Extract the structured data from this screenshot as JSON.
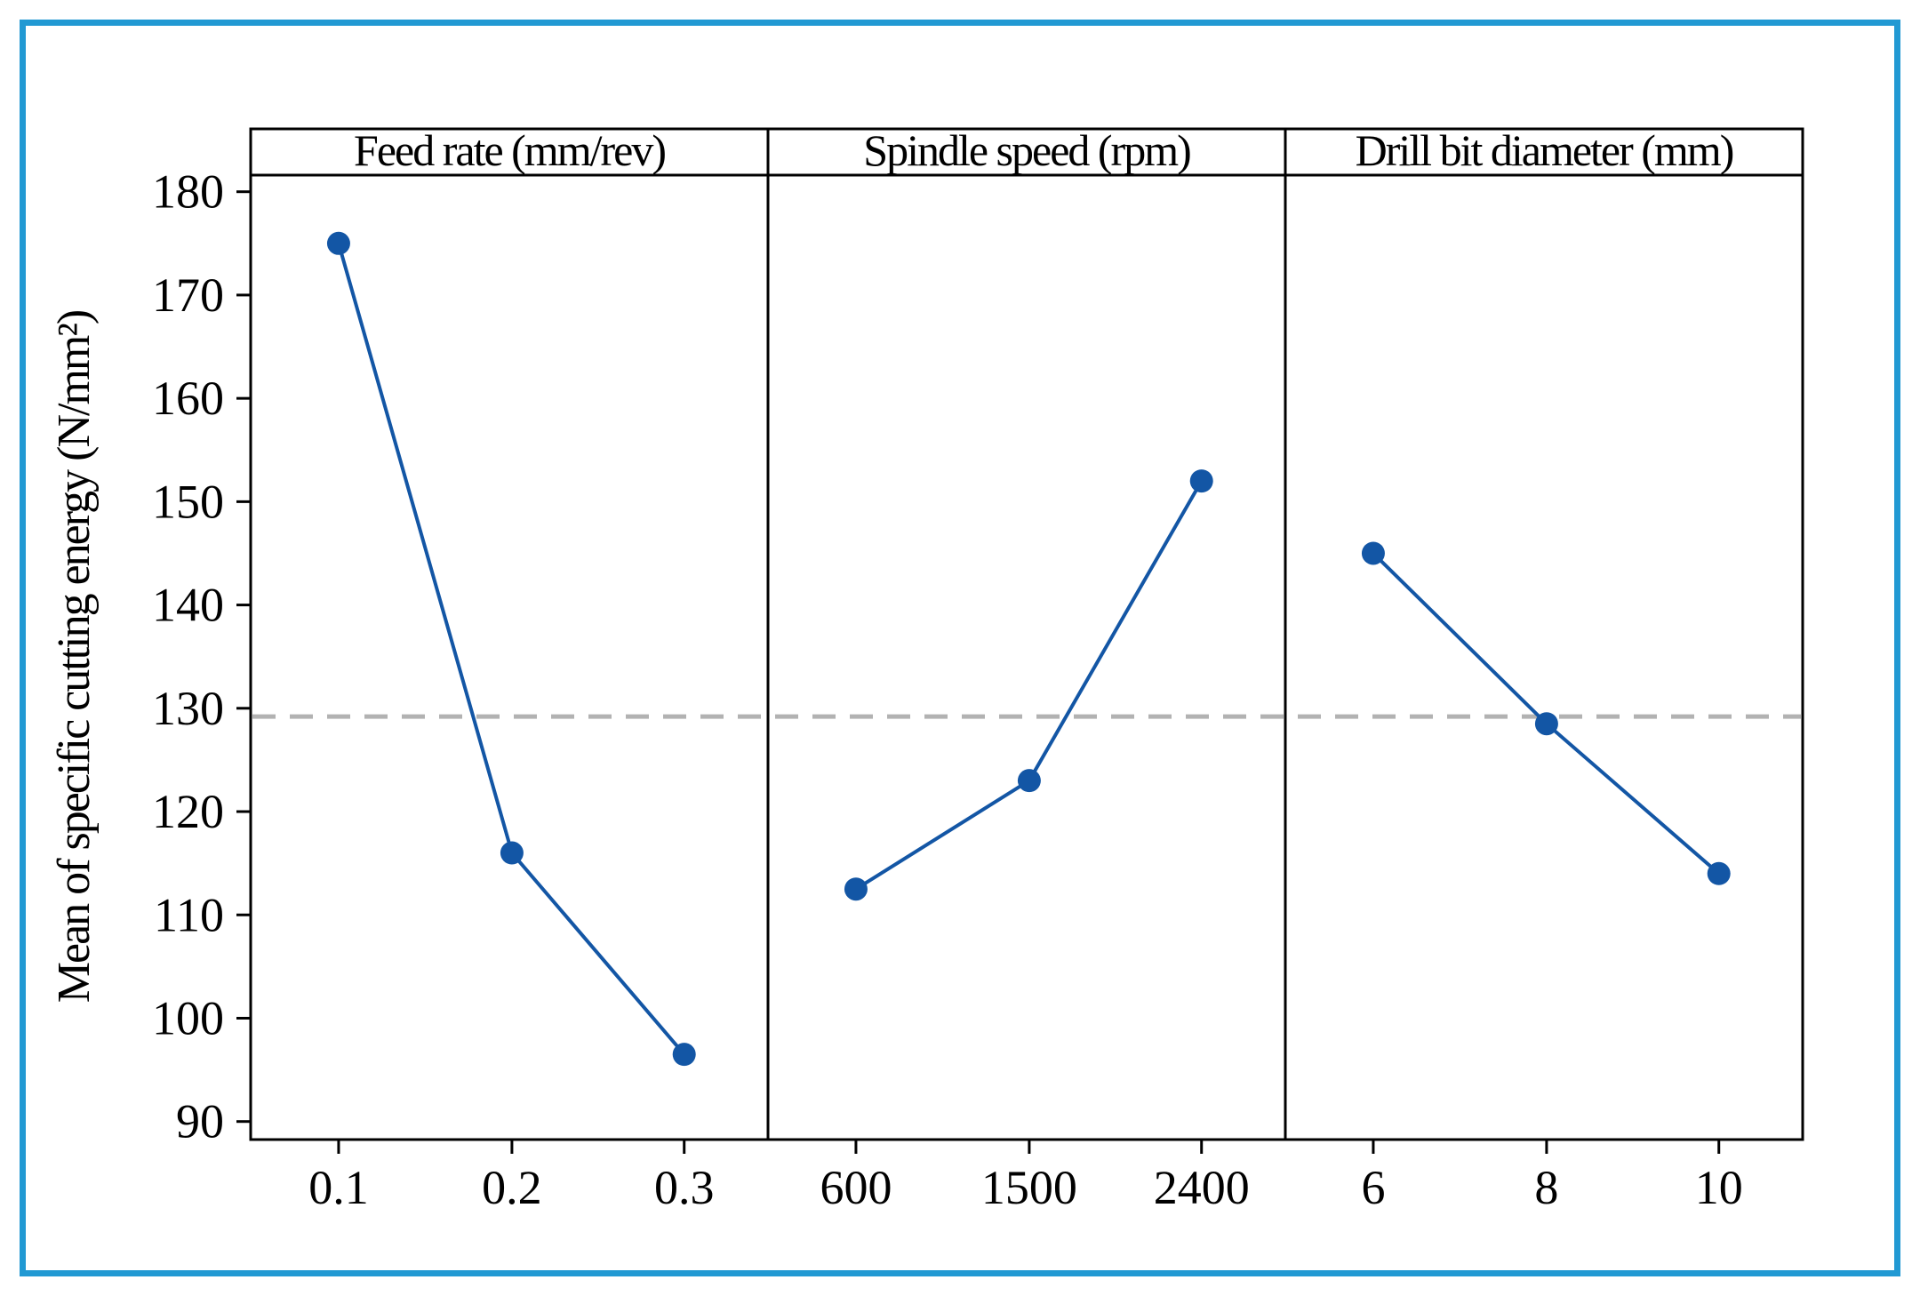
{
  "frame": {
    "border_color": "#2199d3"
  },
  "chart_data": {
    "type": "line",
    "subtype": "main-effects-plot",
    "ylabel": "Mean of specific cutting energy (N/mm²)",
    "ylim": [
      90,
      180
    ],
    "yticks": [
      180,
      170,
      160,
      150,
      140,
      130,
      120,
      110,
      100,
      90
    ],
    "grid": "off",
    "legend": "none",
    "series_color": "#1356a5",
    "point_color": "#1356a5",
    "reference_line": {
      "value": 129.2,
      "style": "dashed",
      "color": "#b2b2b2"
    },
    "panels": [
      {
        "title": "Feed rate (mm/rev)",
        "categories": [
          "0.1",
          "0.2",
          "0.3"
        ],
        "values": [
          175,
          116,
          96.5
        ]
      },
      {
        "title": "Spindle speed (rpm)",
        "categories": [
          "600",
          "1500",
          "2400"
        ],
        "values": [
          112.5,
          123,
          152
        ]
      },
      {
        "title": "Drill bit diameter (mm)",
        "categories": [
          "6",
          "8",
          "10"
        ],
        "values": [
          145,
          128.5,
          114
        ]
      }
    ]
  }
}
